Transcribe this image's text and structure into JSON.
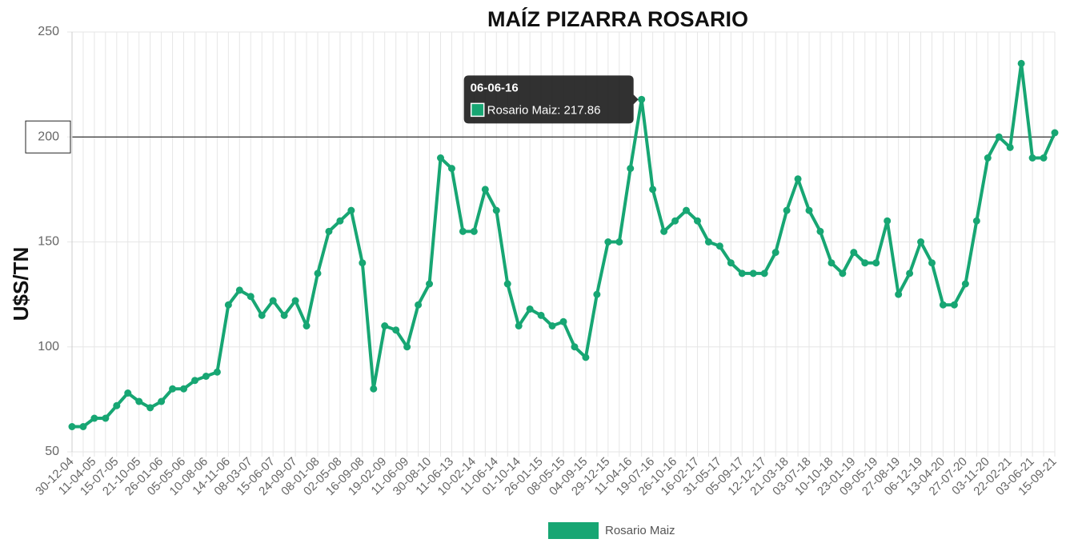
{
  "chart_data": {
    "type": "line",
    "title": "MAÍZ PIZARRA ROSARIO",
    "y_label": "U$S/TN",
    "categories": [
      "30-12-04",
      null,
      "11-04-05",
      null,
      "15-07-05",
      null,
      "21-10-05",
      null,
      "26-01-06",
      null,
      "05-05-06",
      null,
      "10-08-06",
      null,
      "14-11-06",
      null,
      "08-03-07",
      null,
      "15-06-07",
      null,
      "24-09-07",
      null,
      "08-01-08",
      null,
      "02-05-08",
      null,
      "16-09-08",
      null,
      "19-02-09",
      null,
      "11-06-09",
      null,
      "30-08-10",
      null,
      "11-06-13",
      null,
      "10-02-14",
      null,
      "11-06-14",
      null,
      "01-10-14",
      null,
      "26-01-15",
      null,
      "08-05-15",
      null,
      "04-09-15",
      null,
      "29-12-15",
      null,
      "11-04-16",
      null,
      "19-07-16",
      null,
      "26-10-16",
      null,
      "16-02-17",
      null,
      "31-05-17",
      null,
      "05-09-17",
      null,
      "12-12-17",
      null,
      "21-03-18",
      null,
      "03-07-18",
      null,
      "10-10-18",
      null,
      "23-01-19",
      null,
      "09-05-19",
      null,
      "27-08-19",
      null,
      "06-12-19",
      null,
      "13-04-20",
      null,
      "27-07-20",
      null,
      "03-11-20",
      null,
      "22-02-21",
      null,
      "03-06-21",
      null,
      "15-09-21"
    ],
    "series": [
      {
        "name": "Rosario Maiz",
        "color": "#17a673",
        "values": [
          62,
          62,
          66,
          66,
          72,
          78,
          74,
          71,
          74,
          80,
          80,
          84,
          86,
          88,
          120,
          127,
          124,
          115,
          122,
          115,
          122,
          110,
          135,
          155,
          160,
          165,
          140,
          80,
          110,
          108,
          100,
          120,
          130,
          190,
          185,
          155,
          155,
          175,
          165,
          130,
          110,
          118,
          115,
          110,
          112,
          100,
          95,
          125,
          150,
          150,
          185,
          217.86,
          175,
          155,
          160,
          165,
          160,
          150,
          148,
          140,
          135,
          135,
          135,
          145,
          165,
          180,
          165,
          155,
          140,
          135,
          145,
          140,
          140,
          160,
          125,
          135,
          150,
          140,
          120,
          120,
          130,
          160,
          190,
          200,
          195,
          235,
          190,
          190,
          202
        ]
      }
    ],
    "ylim": [
      50,
      250
    ],
    "yticks": [
      50,
      100,
      150,
      200,
      250
    ],
    "grid": true,
    "reference_line": 200,
    "tooltip": {
      "title": "06-06-16",
      "label": "Rosario Maiz: 217.86",
      "value": 217.86
    }
  }
}
